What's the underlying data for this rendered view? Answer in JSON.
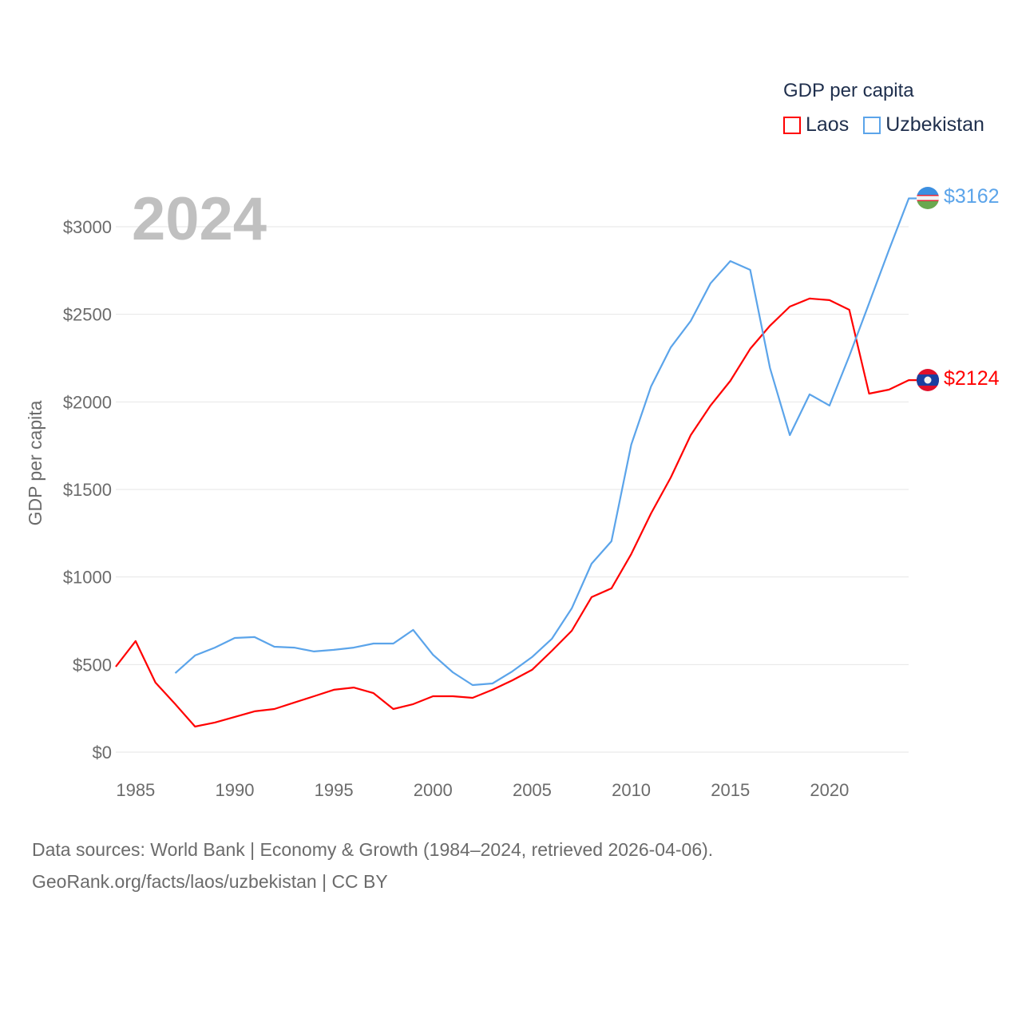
{
  "chart_data": {
    "type": "line",
    "title": "2024",
    "ylabel": "GDP per capita",
    "xlabel": "",
    "ylim": [
      0,
      3000
    ],
    "xlim": [
      1984,
      2024
    ],
    "grid": true,
    "legend_placement": "top-right",
    "legend_title": "GDP per capita",
    "y_ticks": [
      {
        "v": 0,
        "label": "$0"
      },
      {
        "v": 500,
        "label": "$500"
      },
      {
        "v": 1000,
        "label": "$1000"
      },
      {
        "v": 1500,
        "label": "$1500"
      },
      {
        "v": 2000,
        "label": "$2000"
      },
      {
        "v": 2500,
        "label": "$2500"
      },
      {
        "v": 3000,
        "label": "$3000"
      }
    ],
    "x_ticks": [
      {
        "v": 1985,
        "label": "1985"
      },
      {
        "v": 1990,
        "label": "1990"
      },
      {
        "v": 1995,
        "label": "1995"
      },
      {
        "v": 2000,
        "label": "2000"
      },
      {
        "v": 2005,
        "label": "2005"
      },
      {
        "v": 2010,
        "label": "2010"
      },
      {
        "v": 2015,
        "label": "2015"
      },
      {
        "v": 2020,
        "label": "2020"
      }
    ],
    "series": [
      {
        "name": "Laos",
        "color": "#ff0000",
        "end_label": "$2124",
        "flag": "laos-flag",
        "x": [
          1984,
          1985,
          1986,
          1987,
          1988,
          1989,
          1990,
          1991,
          1992,
          1993,
          1994,
          1995,
          1996,
          1997,
          1998,
          1999,
          2000,
          2001,
          2002,
          2003,
          2004,
          2005,
          2006,
          2007,
          2008,
          2009,
          2010,
          2011,
          2012,
          2013,
          2014,
          2015,
          2016,
          2017,
          2018,
          2019,
          2020,
          2021,
          2022,
          2023,
          2024
        ],
        "values": [
          488,
          634,
          397,
          274,
          146,
          169,
          201,
          233,
          246,
          283,
          319,
          356,
          369,
          337,
          246,
          274,
          319,
          319,
          310,
          356,
          410,
          470,
          579,
          693,
          885,
          935,
          1131,
          1363,
          1569,
          1810,
          1979,
          2120,
          2303,
          2435,
          2544,
          2590,
          2581,
          2526,
          2047,
          2070,
          2124
        ]
      },
      {
        "name": "Uzbekistan",
        "color": "#5ba4ea",
        "end_label": "$3162",
        "flag": "uzbekistan-flag",
        "x": [
          1987,
          1988,
          1989,
          1990,
          1991,
          1992,
          1993,
          1994,
          1995,
          1996,
          1997,
          1998,
          1999,
          2000,
          2001,
          2002,
          2003,
          2004,
          2005,
          2006,
          2007,
          2008,
          2009,
          2010,
          2011,
          2012,
          2013,
          2014,
          2015,
          2016,
          2017,
          2018,
          2019,
          2020,
          2021,
          2022,
          2023,
          2024
        ],
        "values": [
          451,
          552,
          597,
          652,
          657,
          602,
          597,
          575,
          584,
          597,
          620,
          620,
          698,
          556,
          456,
          383,
          392,
          461,
          543,
          648,
          821,
          1076,
          1204,
          1756,
          2088,
          2312,
          2462,
          2677,
          2804,
          2754,
          2193,
          1810,
          2043,
          1979,
          2262,
          2563,
          2868,
          3162
        ]
      }
    ]
  },
  "footer": {
    "line1": "Data sources: World Bank | Economy & Growth (1984–2024, retrieved 2026-04-06).",
    "line2": "GeoRank.org/facts/laos/uzbekistan | CC BY"
  }
}
